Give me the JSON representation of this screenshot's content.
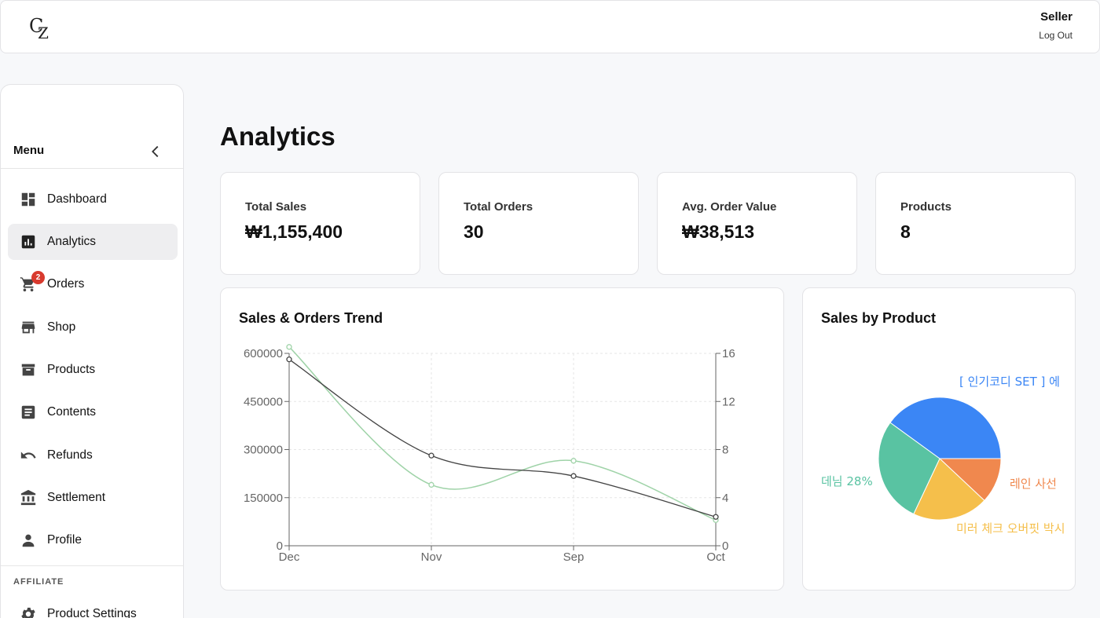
{
  "header": {
    "user_role": "Seller",
    "logout_label": "Log Out"
  },
  "sidebar": {
    "menu_title": "Menu",
    "items": [
      {
        "label": "Dashboard",
        "icon": "dashboard-icon"
      },
      {
        "label": "Analytics",
        "icon": "analytics-icon",
        "active": true
      },
      {
        "label": "Orders",
        "icon": "cart-icon",
        "badge": "2"
      },
      {
        "label": "Shop",
        "icon": "store-icon"
      },
      {
        "label": "Products",
        "icon": "archive-icon"
      },
      {
        "label": "Contents",
        "icon": "article-icon"
      },
      {
        "label": "Refunds",
        "icon": "undo-icon"
      },
      {
        "label": "Settlement",
        "icon": "bank-icon"
      },
      {
        "label": "Profile",
        "icon": "person-icon"
      }
    ],
    "section_label": "AFFILIATE",
    "affiliate_items": [
      {
        "label": "Product Settings",
        "icon": "gear-icon"
      }
    ]
  },
  "page_title": "Analytics",
  "stats": [
    {
      "label": "Total Sales",
      "value": "₩1,155,400"
    },
    {
      "label": "Total Orders",
      "value": "30"
    },
    {
      "label": "Avg. Order Value",
      "value": "₩38,513"
    },
    {
      "label": "Products",
      "value": "8"
    }
  ],
  "colors": {
    "sales_line": "#9fd3a8",
    "orders_line": "#444444",
    "pie_blue": "#3b86f5",
    "pie_orange": "#f0884e",
    "pie_yellow": "#f5bf4b",
    "pie_green": "#59c3a2"
  },
  "chart_data": [
    {
      "type": "line",
      "title": "Sales & Orders Trend",
      "categories": [
        "Dec",
        "Nov",
        "Sep",
        "Oct"
      ],
      "y_left": {
        "ticks": [
          "0",
          "150000",
          "300000",
          "450000",
          "600000"
        ],
        "range": [
          0,
          600000
        ]
      },
      "y_right": {
        "ticks": [
          "0",
          "4",
          "8",
          "12",
          "16"
        ],
        "range": [
          0,
          16
        ]
      },
      "series": [
        {
          "axis": "left",
          "values": [
            620000,
            190000,
            265000,
            80000
          ]
        },
        {
          "axis": "right",
          "values": [
            15.5,
            7.5,
            5.8,
            2.4
          ]
        }
      ]
    },
    {
      "type": "pie",
      "title": "Sales by Product",
      "slices": [
        {
          "label": "[ 인기코디 SET ] 에",
          "value": 40
        },
        {
          "label": "레인 사선",
          "value": 12
        },
        {
          "label": "미러 체크 오버핏 박시",
          "value": 20
        },
        {
          "label": "데님 28%",
          "value": 28
        }
      ]
    }
  ]
}
